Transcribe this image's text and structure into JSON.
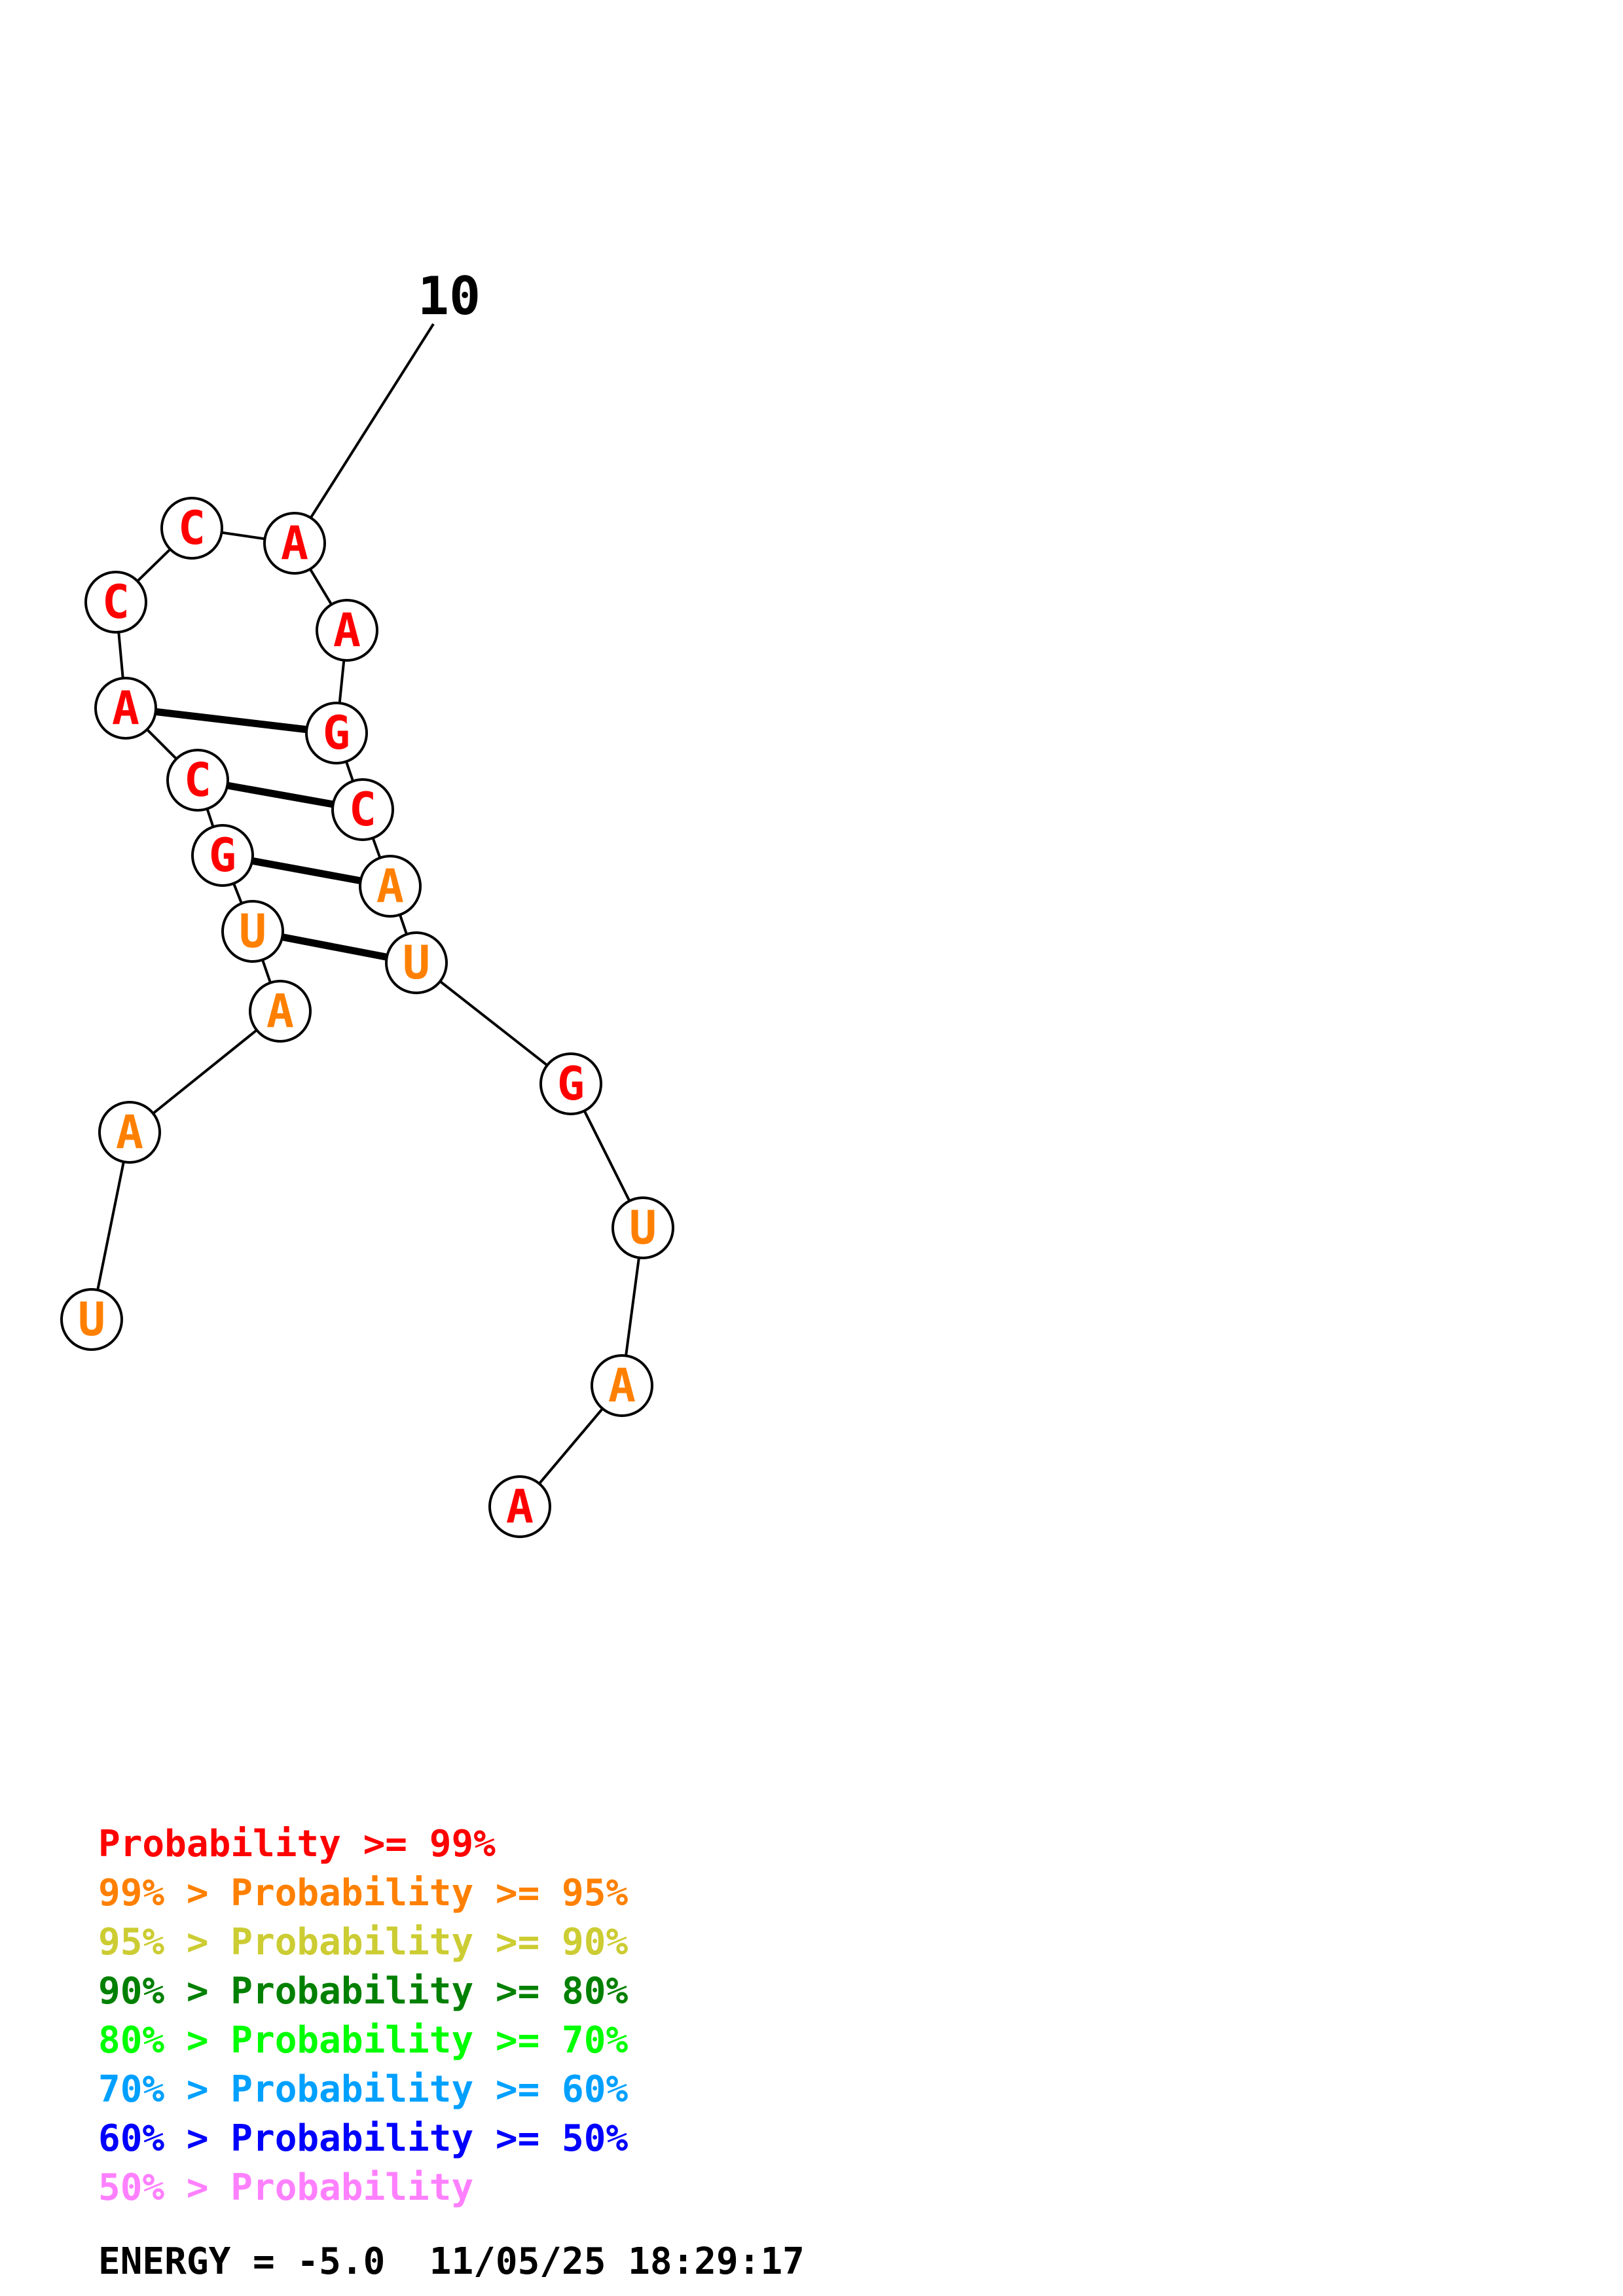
{
  "structure": {
    "sequence": [
      {
        "base": "U",
        "level": "p95"
      },
      {
        "base": "A",
        "level": "p95"
      },
      {
        "base": "A",
        "level": "p95"
      },
      {
        "base": "U",
        "level": "p95"
      },
      {
        "base": "G",
        "level": "p99"
      },
      {
        "base": "C",
        "level": "p99"
      },
      {
        "base": "A",
        "level": "p99"
      },
      {
        "base": "C",
        "level": "p99"
      },
      {
        "base": "C",
        "level": "p99"
      },
      {
        "base": "A",
        "level": "p99"
      },
      {
        "base": "A",
        "level": "p99"
      },
      {
        "base": "G",
        "level": "p99"
      },
      {
        "base": "C",
        "level": "p99"
      },
      {
        "base": "A",
        "level": "p95"
      },
      {
        "base": "U",
        "level": "p95"
      },
      {
        "base": "G",
        "level": "p99"
      },
      {
        "base": "U",
        "level": "p95"
      },
      {
        "base": "A",
        "level": "p95"
      },
      {
        "base": "A",
        "level": "p99"
      }
    ],
    "pairs": [
      [
        3,
        14
      ],
      [
        4,
        13
      ],
      [
        5,
        12
      ],
      [
        6,
        11
      ]
    ],
    "index_labels": [
      {
        "nucleotide": 10,
        "text": "10"
      }
    ]
  },
  "legend": [
    {
      "prefix": "",
      "label": "Probability",
      "suffix": ">= 99%",
      "level": "p99"
    },
    {
      "prefix": "99% >",
      "label": "Probability",
      "suffix": ">= 95%",
      "level": "p95"
    },
    {
      "prefix": "95% >",
      "label": "Probability",
      "suffix": ">= 90%",
      "level": "p90"
    },
    {
      "prefix": "90% >",
      "label": "Probability",
      "suffix": ">= 80%",
      "level": "p80"
    },
    {
      "prefix": "80% >",
      "label": "Probability",
      "suffix": ">= 70%",
      "level": "p70"
    },
    {
      "prefix": "70% >",
      "label": "Probability",
      "suffix": ">= 60%",
      "level": "p60"
    },
    {
      "prefix": "60% >",
      "label": "Probability",
      "suffix": ">= 50%",
      "level": "p50"
    },
    {
      "prefix": "50% >",
      "label": "Probability",
      "suffix": "",
      "level": "plow"
    }
  ],
  "colors": {
    "p99": "#ff0000",
    "p95": "#ff8000",
    "p90": "#cccc33",
    "p80": "#008000",
    "p70": "#00ff00",
    "p60": "#00a0ff",
    "p50": "#0000ff",
    "plow": "#ff80ff",
    "text": "#000000"
  },
  "footer": {
    "energy_label": "ENERGY",
    "energy_value": "-5.0",
    "date": "11/05/25",
    "time": "18:29:17",
    "text": "ENERGY = -5.0  11/05/25 18:29:17"
  }
}
